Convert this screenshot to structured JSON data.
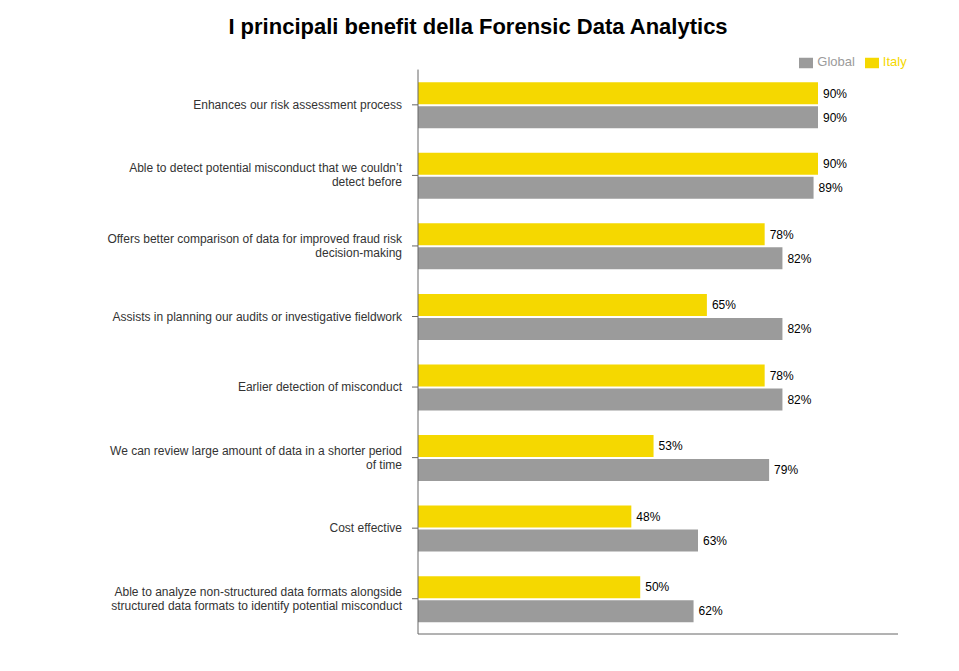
{
  "chart_data": {
    "type": "bar",
    "title": "I principali benefit della Forensic Data Analytics",
    "orientation": "horizontal",
    "categories": [
      "Enhances our risk assessment process",
      "Able to detect potential misconduct that we couldn’t\ndetect before",
      "Offers better comparison of data for improved fraud risk\ndecision-making",
      "Assists in planning our audits or investigative fieldwork",
      "Earlier detection of misconduct",
      "We can review large amount of data in a shorter period\nof time",
      "Cost effective",
      "Able to analyze non-structured data formats alongside\nstructured data formats to identify potential misconduct"
    ],
    "series": [
      {
        "name": "Italy",
        "color": "#F5D800",
        "values": [
          90,
          90,
          78,
          65,
          78,
          53,
          48,
          50
        ],
        "value_labels": [
          "90%",
          "90%",
          "78%",
          "65%",
          "78%",
          "53%",
          "48%",
          "50%"
        ]
      },
      {
        "name": "Global",
        "color": "#9B9B9B",
        "values": [
          90,
          89,
          82,
          82,
          82,
          79,
          63,
          62
        ],
        "value_labels": [
          "90%",
          "89%",
          "82%",
          "82%",
          "82%",
          "79%",
          "63%",
          "62%"
        ]
      }
    ],
    "xlim": [
      0,
      108
    ],
    "data_labels": true,
    "tick_labels": "y",
    "grid": false,
    "legend": "top"
  }
}
